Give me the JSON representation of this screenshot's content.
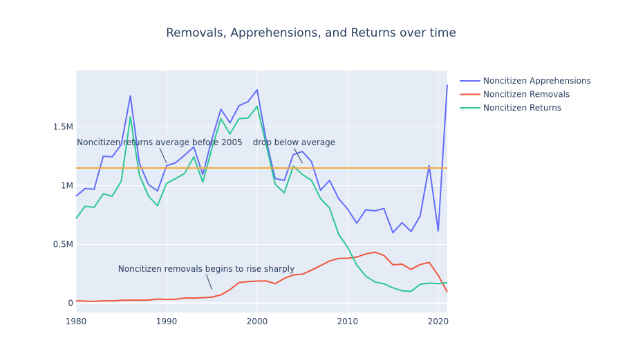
{
  "chart_data": {
    "type": "line",
    "title": "Removals, Apprehensions, and Returns over time",
    "xlabel": "",
    "ylabel": "",
    "xlim": [
      1980,
      2021
    ],
    "ylim": [
      -80000,
      1980000
    ],
    "x_ticks": [
      1980,
      1990,
      2000,
      2010,
      2020
    ],
    "y_ticks": [
      {
        "value": 0,
        "label": "0"
      },
      {
        "value": 500000,
        "label": "0.5M"
      },
      {
        "value": 1000000,
        "label": "1M"
      },
      {
        "value": 1500000,
        "label": "1.5M"
      }
    ],
    "grid": true,
    "legend_position": "top-right",
    "x": [
      1980,
      1981,
      1982,
      1983,
      1984,
      1985,
      1986,
      1987,
      1988,
      1989,
      1990,
      1991,
      1992,
      1993,
      1994,
      1995,
      1996,
      1997,
      1998,
      1999,
      2000,
      2001,
      2002,
      2003,
      2004,
      2005,
      2006,
      2007,
      2008,
      2009,
      2010,
      2011,
      2012,
      2013,
      2014,
      2015,
      2016,
      2017,
      2018,
      2019,
      2020,
      2021
    ],
    "series": [
      {
        "name": "Noncitizen Apprehensions",
        "color": "#636efa",
        "values": [
          910000,
          975000,
          970000,
          1250000,
          1245000,
          1350000,
          1765000,
          1190000,
          1010000,
          955000,
          1170000,
          1195000,
          1260000,
          1330000,
          1095000,
          1395000,
          1650000,
          1535000,
          1680000,
          1715000,
          1815000,
          1385000,
          1060000,
          1045000,
          1265000,
          1290000,
          1205000,
          960000,
          1045000,
          890000,
          800000,
          680000,
          795000,
          785000,
          805000,
          600000,
          685000,
          610000,
          740000,
          1170000,
          615000,
          1860000
        ]
      },
      {
        "name": "Noncitizen Removals",
        "color": "#ef553b",
        "values": [
          19000,
          17000,
          15000,
          19000,
          19000,
          24000,
          25000,
          25000,
          26000,
          34000,
          31000,
          33000,
          44000,
          43000,
          46000,
          51000,
          70000,
          115000,
          175000,
          183000,
          188000,
          189000,
          165000,
          211000,
          240000,
          246000,
          281000,
          319000,
          359000,
          380000,
          382000,
          392000,
          419000,
          434000,
          407000,
          326000,
          332000,
          287000,
          328000,
          347000,
          237000,
          95000
        ]
      },
      {
        "name": "Noncitizen Returns",
        "color": "#2cc794",
        "values": [
          720000,
          825000,
          815000,
          930000,
          910000,
          1040000,
          1585000,
          1090000,
          910000,
          830000,
          1020000,
          1060000,
          1105000,
          1245000,
          1030000,
          1315000,
          1570000,
          1440000,
          1570000,
          1575000,
          1675000,
          1350000,
          1010000,
          940000,
          1165000,
          1095000,
          1045000,
          890000,
          810000,
          585000,
          475000,
          325000,
          230000,
          180000,
          165000,
          130000,
          105000,
          100000,
          160000,
          170000,
          165000,
          175000
        ]
      }
    ],
    "reference_line": {
      "value": 1150000,
      "color": "#f2a93b"
    },
    "annotations": [
      {
        "text": "Noncitizen returns average before 2005",
        "x": 1990,
        "y": 1190000
      },
      {
        "text": "drop below average",
        "x": 2005,
        "y": 1190000
      },
      {
        "text": "Noncitizen removals begins to rise sharply",
        "x": 1995,
        "y": 115000
      }
    ]
  }
}
